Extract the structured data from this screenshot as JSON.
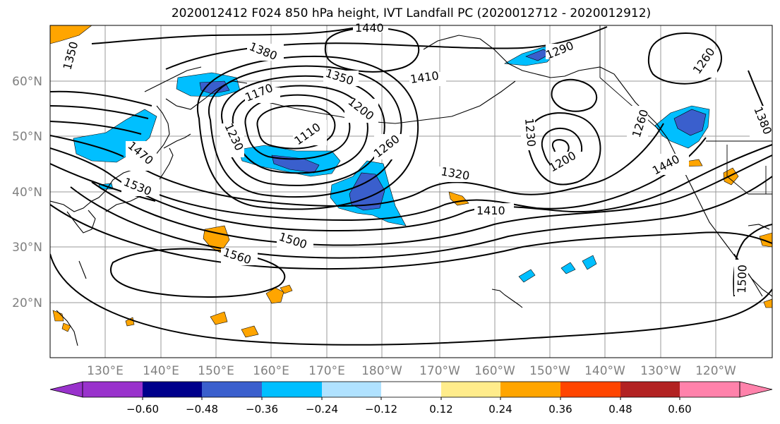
{
  "title": "2020012412 F024 850 hPa height, IVT Landfall PC (2020012712 - 2020012912)",
  "lat_labels": [
    "60°N",
    "50°N",
    "40°N",
    "30°N",
    "20°N"
  ],
  "lon_labels": [
    "130°E",
    "140°E",
    "150°E",
    "160°E",
    "170°E",
    "180°W",
    "170°W",
    "160°W",
    "150°W",
    "140°W",
    "130°W",
    "120°W"
  ],
  "contour_labels": [
    "1350",
    "1440",
    "1380",
    "1350",
    "1410",
    "1290",
    "1260",
    "1170",
    "1110",
    "1200",
    "1260",
    "1230",
    "1230",
    "1200",
    "1260",
    "1380",
    "1470",
    "1530",
    "1320",
    "1410",
    "1440",
    "1500",
    "1560",
    "1500"
  ],
  "colorbar": {
    "ticks": [
      "−0.60",
      "−0.48",
      "−0.36",
      "−0.24",
      "−0.12",
      "0.12",
      "0.24",
      "0.36",
      "0.48",
      "0.60"
    ],
    "colors": [
      "#9932cc",
      "#00008b",
      "#3a5fcd",
      "#00bfff",
      "#b0e2ff",
      "#ffffff",
      "#ffec8b",
      "#ffa500",
      "#ff4500",
      "#b22222",
      "#ff82ab"
    ]
  },
  "colors": {
    "neg_light": "#00bfff",
    "neg_mid": "#3a5fcd",
    "pos": "#ffa500",
    "pos_light": "#ffec8b"
  }
}
